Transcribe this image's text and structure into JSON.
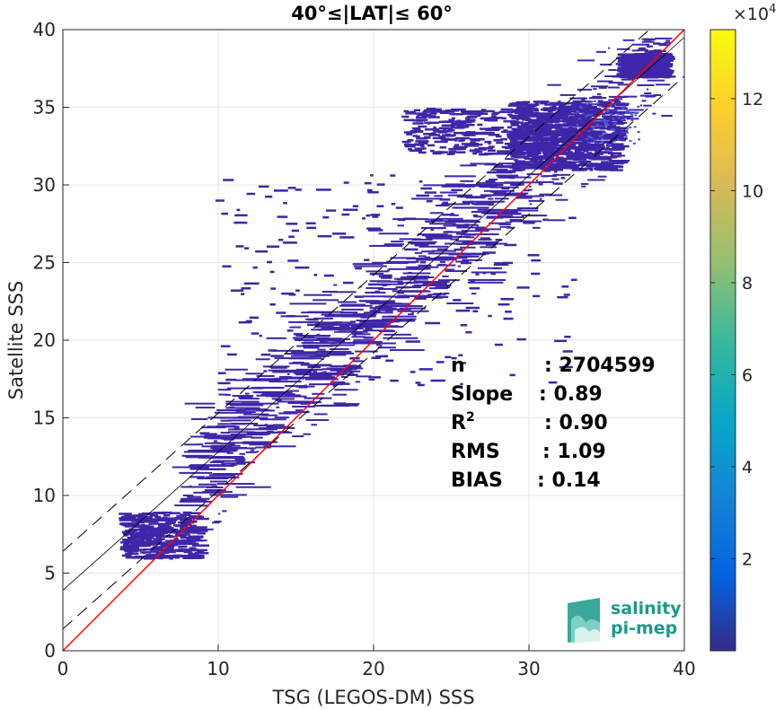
{
  "chart_data": {
    "type": "heatmap",
    "title": "40°≤|LAT|≤ 60°",
    "xlabel": "TSG (LEGOS-DM) SSS",
    "ylabel": "Satellite SSS",
    "xlim": [
      0,
      40
    ],
    "ylim": [
      0,
      40
    ],
    "xticks": [
      "0",
      "10",
      "20",
      "30",
      "40"
    ],
    "yticks": [
      "0",
      "5",
      "10",
      "15",
      "20",
      "25",
      "30",
      "35",
      "40"
    ],
    "grid": true,
    "colorbar": {
      "range": [
        0,
        13.5
      ],
      "ticks": [
        "2",
        "4",
        "6",
        "8",
        "10",
        "12"
      ],
      "tick_values": [
        2,
        4,
        6,
        8,
        10,
        12
      ],
      "multiplier": "×10",
      "multiplier_exp": "4",
      "colormap": "parula"
    },
    "reference_lines": {
      "identity": {
        "slope": 1,
        "intercept": 0,
        "color": "#ff0000"
      },
      "fit": {
        "slope": 0.89,
        "intercept": 3.9
      },
      "fit_upper": {
        "slope": 0.89,
        "intercept": 6.4
      },
      "fit_lower": {
        "slope": 0.89,
        "intercept": 1.4
      }
    },
    "density_regions": [
      {
        "x": [
          29,
          36
        ],
        "y": [
          31,
          35.5
        ],
        "weight": 1.0
      },
      {
        "x": [
          22,
          34
        ],
        "y": [
          32,
          35
        ],
        "weight": 0.5
      },
      {
        "x": [
          10,
          33
        ],
        "y": [
          17,
          31
        ],
        "weight": 0.3
      },
      {
        "x": [
          36,
          39
        ],
        "y": [
          37,
          38.5
        ],
        "weight": 0.6
      },
      {
        "x": [
          4,
          9
        ],
        "y": [
          6,
          9
        ],
        "weight": 0.5
      }
    ],
    "stats": [
      {
        "label": "n",
        "value": ": 2704599"
      },
      {
        "label": "Slope",
        "value": ": 0.89"
      },
      {
        "label": "R",
        "sup": "2",
        "value": ": 0.90"
      },
      {
        "label": "RMS",
        "value": ": 1.09"
      },
      {
        "label": "BIAS",
        "value": ": 0.14"
      }
    ]
  },
  "logo": {
    "line1": "salinity",
    "line2": "pi-mep"
  },
  "colors": {
    "points": "#3e26a8",
    "identity": "#ff0000",
    "fit": "#000000",
    "logo": "#1a9a8c"
  }
}
